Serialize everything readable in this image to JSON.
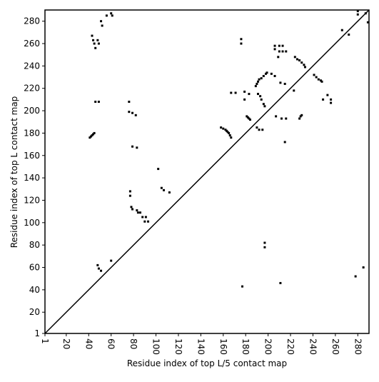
{
  "chart_data": {
    "type": "scatter",
    "x_label": "Residue index of top L/5 contact map",
    "y_label": "Residue index of top L contact map",
    "xlim": [
      1,
      290
    ],
    "ylim": [
      1,
      290
    ],
    "xticks": [
      1,
      20,
      40,
      60,
      80,
      100,
      120,
      140,
      160,
      180,
      200,
      220,
      240,
      260,
      280
    ],
    "yticks": [
      1,
      20,
      40,
      60,
      80,
      100,
      120,
      140,
      160,
      180,
      200,
      220,
      240,
      260,
      280
    ],
    "color": "#000000",
    "x": [
      43,
      44,
      45,
      46,
      48,
      49,
      51,
      52,
      56,
      60,
      61,
      46,
      49,
      41,
      42,
      43,
      44,
      45,
      76,
      79,
      82,
      76,
      79,
      83,
      102,
      77,
      77,
      78,
      79,
      83,
      84,
      86,
      88,
      90,
      93,
      91,
      105,
      107,
      112,
      48,
      49,
      51,
      60,
      158,
      160,
      162,
      163,
      164,
      165,
      166,
      167,
      176,
      176,
      181,
      182,
      183,
      184,
      179,
      179,
      183,
      167,
      171,
      190,
      192,
      195,
      189,
      190,
      191,
      192,
      194,
      196,
      198,
      199,
      191,
      193,
      194,
      196,
      197,
      197,
      197,
      206,
      206,
      210,
      210,
      213,
      213,
      216,
      209,
      203,
      206,
      211,
      215,
      177,
      211,
      207,
      212,
      216,
      215,
      223,
      224,
      226,
      228,
      230,
      232,
      233,
      228,
      229,
      230,
      241,
      243,
      245,
      247,
      248,
      249,
      253,
      256,
      256,
      266,
      272,
      280,
      280,
      287,
      289,
      278,
      285
    ],
    "values": [
      267,
      263,
      260,
      256,
      263,
      260,
      280,
      276,
      285,
      287,
      285,
      208,
      208,
      176,
      177,
      178,
      179,
      180,
      199,
      198,
      196,
      208,
      168,
      167,
      148,
      124,
      128,
      114,
      112,
      111,
      109,
      109,
      105,
      101,
      101,
      105,
      131,
      129,
      127,
      62,
      59,
      57,
      66,
      185,
      184,
      183,
      182,
      181,
      180,
      178,
      176,
      264,
      260,
      195,
      194,
      193,
      192,
      217,
      210,
      215,
      216,
      216,
      185,
      183,
      183,
      222,
      224,
      226,
      228,
      229,
      231,
      233,
      234,
      215,
      213,
      210,
      206,
      204,
      82,
      78,
      258,
      255,
      258,
      253,
      258,
      253,
      253,
      248,
      233,
      231,
      225,
      224,
      43,
      46,
      195,
      193,
      193,
      172,
      218,
      248,
      246,
      245,
      243,
      241,
      239,
      193,
      195,
      196,
      232,
      230,
      228,
      227,
      226,
      210,
      214,
      210,
      207,
      272,
      268,
      289,
      286,
      287,
      279,
      52,
      60
    ]
  }
}
